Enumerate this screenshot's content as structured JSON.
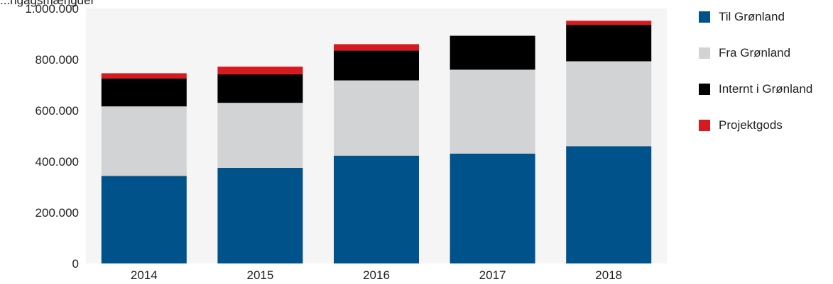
{
  "chart_data": {
    "type": "bar",
    "stacked": true,
    "title": "",
    "xlabel": "",
    "ylabel": "",
    "ylim": [
      0,
      1000000
    ],
    "yticks": [
      0,
      200000,
      400000,
      600000,
      800000,
      1000000
    ],
    "ytick_labels": [
      "0",
      "200.000",
      "400.000",
      "600.000",
      "800.000",
      "1.000.000"
    ],
    "categories": [
      "2014",
      "2015",
      "2016",
      "2017",
      "2018"
    ],
    "grid": false,
    "legend_position": "right",
    "series": [
      {
        "name": "Til Grønland",
        "color": "#00528a",
        "values": [
          343000,
          375000,
          423000,
          431000,
          460000
        ]
      },
      {
        "name": "Fra Grønland",
        "color": "#d1d3d4",
        "values": [
          273000,
          255000,
          295000,
          329000,
          333000
        ]
      },
      {
        "name": "Internt i Grønland",
        "color": "#000000",
        "values": [
          110000,
          112000,
          117000,
          133000,
          143000
        ]
      },
      {
        "name": "Projektgods",
        "color": "#d71920",
        "values": [
          20000,
          30000,
          25000,
          0,
          16000
        ]
      }
    ]
  },
  "top_text": "...ngagsmængder"
}
